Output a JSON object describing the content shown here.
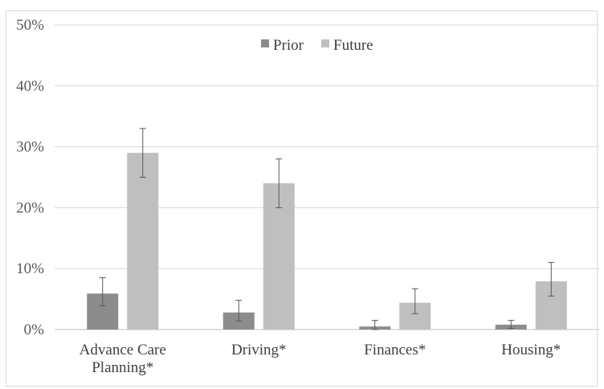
{
  "chart_data": {
    "type": "bar",
    "title": "",
    "xlabel": "",
    "ylabel": "",
    "categories": [
      [
        "Advance Care",
        "Planning*"
      ],
      [
        "Driving*"
      ],
      [
        "Finances*"
      ],
      [
        "Housing*"
      ]
    ],
    "ylim": [
      0,
      0.5
    ],
    "yticks": [
      0,
      0.1,
      0.2,
      0.3,
      0.4,
      0.5
    ],
    "ytick_labels": [
      "0%",
      "10%",
      "20%",
      "30%",
      "40%",
      "50%"
    ],
    "grid": true,
    "legend_position": "top-center",
    "series": [
      {
        "name": "Prior",
        "color": "#8c8c8c",
        "values": [
          0.059,
          0.028,
          0.005,
          0.008
        ],
        "err_low": [
          0.039,
          0.014,
          0.0,
          0.002
        ],
        "err_high": [
          0.085,
          0.048,
          0.015,
          0.015
        ]
      },
      {
        "name": "Future",
        "color": "#bfbfbf",
        "values": [
          0.29,
          0.24,
          0.044,
          0.079
        ],
        "err_low": [
          0.25,
          0.2,
          0.026,
          0.055
        ],
        "err_high": [
          0.33,
          0.28,
          0.067,
          0.11
        ]
      }
    ]
  }
}
